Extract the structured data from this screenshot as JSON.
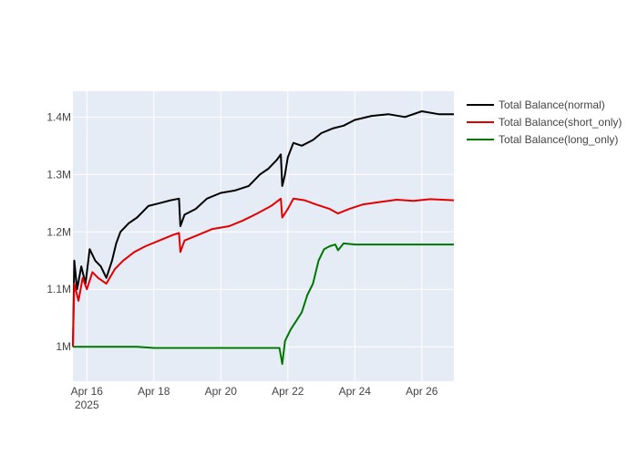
{
  "chart_data": {
    "type": "line",
    "title": "",
    "xlabel": "",
    "ylabel": "",
    "x_start": "2025-04-15 14:00",
    "x_end": "2025-04-26 23:00",
    "xlim": [
      "2025-04-15 14:00",
      "2025-04-26 23:00"
    ],
    "ylim": [
      940000,
      1445000
    ],
    "x_ticks": [
      {
        "date": "2025-04-16",
        "label": "Apr 16",
        "sublabel": "2025"
      },
      {
        "date": "2025-04-18",
        "label": "Apr 18"
      },
      {
        "date": "2025-04-20",
        "label": "Apr 20"
      },
      {
        "date": "2025-04-22",
        "label": "Apr 22"
      },
      {
        "date": "2025-04-24",
        "label": "Apr 24"
      },
      {
        "date": "2025-04-26",
        "label": "Apr 26"
      }
    ],
    "y_ticks": [
      {
        "value": 1000000,
        "label": "1M"
      },
      {
        "value": 1100000,
        "label": "1.1M"
      },
      {
        "value": 1200000,
        "label": "1.2M"
      },
      {
        "value": 1300000,
        "label": "1.3M"
      },
      {
        "value": 1400000,
        "label": "1.4M"
      }
    ],
    "grid": true,
    "legend_position": "right",
    "plot_background": "#e5ecf6",
    "series": [
      {
        "name": "Total Balance(normal)",
        "color": "#000000",
        "points": [
          [
            "2025-04-15 14:00",
            1000000
          ],
          [
            "2025-04-15 15:00",
            1150000
          ],
          [
            "2025-04-15 17:00",
            1100000
          ],
          [
            "2025-04-15 20:00",
            1140000
          ],
          [
            "2025-04-15 23:00",
            1110000
          ],
          [
            "2025-04-16 02:00",
            1170000
          ],
          [
            "2025-04-16 06:00",
            1150000
          ],
          [
            "2025-04-16 10:00",
            1140000
          ],
          [
            "2025-04-16 14:00",
            1120000
          ],
          [
            "2025-04-16 18:00",
            1150000
          ],
          [
            "2025-04-16 21:00",
            1180000
          ],
          [
            "2025-04-17 00:00",
            1200000
          ],
          [
            "2025-04-17 06:00",
            1215000
          ],
          [
            "2025-04-17 12:00",
            1225000
          ],
          [
            "2025-04-17 16:00",
            1235000
          ],
          [
            "2025-04-17 20:00",
            1245000
          ],
          [
            "2025-04-18 04:00",
            1250000
          ],
          [
            "2025-04-18 12:00",
            1255000
          ],
          [
            "2025-04-18 18:00",
            1258000
          ],
          [
            "2025-04-18 19:00",
            1210000
          ],
          [
            "2025-04-18 22:00",
            1230000
          ],
          [
            "2025-04-19 06:00",
            1240000
          ],
          [
            "2025-04-19 14:00",
            1258000
          ],
          [
            "2025-04-20 00:00",
            1268000
          ],
          [
            "2025-04-20 10:00",
            1272000
          ],
          [
            "2025-04-20 20:00",
            1280000
          ],
          [
            "2025-04-21 04:00",
            1300000
          ],
          [
            "2025-04-21 10:00",
            1310000
          ],
          [
            "2025-04-21 16:00",
            1325000
          ],
          [
            "2025-04-21 19:00",
            1335000
          ],
          [
            "2025-04-21 20:00",
            1280000
          ],
          [
            "2025-04-21 22:00",
            1300000
          ],
          [
            "2025-04-22 00:00",
            1330000
          ],
          [
            "2025-04-22 04:00",
            1355000
          ],
          [
            "2025-04-22 10:00",
            1350000
          ],
          [
            "2025-04-22 18:00",
            1360000
          ],
          [
            "2025-04-23 00:00",
            1372000
          ],
          [
            "2025-04-23 08:00",
            1380000
          ],
          [
            "2025-04-23 16:00",
            1385000
          ],
          [
            "2025-04-24 00:00",
            1395000
          ],
          [
            "2025-04-24 12:00",
            1402000
          ],
          [
            "2025-04-25 00:00",
            1405000
          ],
          [
            "2025-04-25 12:00",
            1400000
          ],
          [
            "2025-04-26 00:00",
            1410000
          ],
          [
            "2025-04-26 12:00",
            1405000
          ],
          [
            "2025-04-26 23:00",
            1405000
          ]
        ]
      },
      {
        "name": "Total Balance(short_only)",
        "color": "#e50000",
        "points": [
          [
            "2025-04-15 14:00",
            1000000
          ],
          [
            "2025-04-15 15:00",
            1110000
          ],
          [
            "2025-04-15 18:00",
            1080000
          ],
          [
            "2025-04-15 21:00",
            1120000
          ],
          [
            "2025-04-16 00:00",
            1100000
          ],
          [
            "2025-04-16 04:00",
            1130000
          ],
          [
            "2025-04-16 08:00",
            1120000
          ],
          [
            "2025-04-16 14:00",
            1110000
          ],
          [
            "2025-04-16 20:00",
            1135000
          ],
          [
            "2025-04-17 02:00",
            1150000
          ],
          [
            "2025-04-17 10:00",
            1165000
          ],
          [
            "2025-04-17 18:00",
            1175000
          ],
          [
            "2025-04-18 04:00",
            1185000
          ],
          [
            "2025-04-18 14:00",
            1195000
          ],
          [
            "2025-04-18 18:00",
            1198000
          ],
          [
            "2025-04-18 19:00",
            1165000
          ],
          [
            "2025-04-18 22:00",
            1185000
          ],
          [
            "2025-04-19 08:00",
            1195000
          ],
          [
            "2025-04-19 18:00",
            1205000
          ],
          [
            "2025-04-20 06:00",
            1210000
          ],
          [
            "2025-04-20 16:00",
            1220000
          ],
          [
            "2025-04-21 02:00",
            1232000
          ],
          [
            "2025-04-21 12:00",
            1245000
          ],
          [
            "2025-04-21 19:00",
            1258000
          ],
          [
            "2025-04-21 20:00",
            1225000
          ],
          [
            "2025-04-22 00:00",
            1240000
          ],
          [
            "2025-04-22 04:00",
            1258000
          ],
          [
            "2025-04-22 12:00",
            1255000
          ],
          [
            "2025-04-22 20:00",
            1248000
          ],
          [
            "2025-04-23 06:00",
            1240000
          ],
          [
            "2025-04-23 12:00",
            1232000
          ],
          [
            "2025-04-23 20:00",
            1240000
          ],
          [
            "2025-04-24 06:00",
            1248000
          ],
          [
            "2025-04-24 18:00",
            1252000
          ],
          [
            "2025-04-25 06:00",
            1256000
          ],
          [
            "2025-04-25 18:00",
            1254000
          ],
          [
            "2025-04-26 06:00",
            1257000
          ],
          [
            "2025-04-26 23:00",
            1255000
          ]
        ]
      },
      {
        "name": "Total Balance(long_only)",
        "color": "#007700",
        "points": [
          [
            "2025-04-15 14:00",
            1000000
          ],
          [
            "2025-04-17 12:00",
            1000000
          ],
          [
            "2025-04-18 00:00",
            998000
          ],
          [
            "2025-04-21 18:00",
            998000
          ],
          [
            "2025-04-21 20:00",
            970000
          ],
          [
            "2025-04-21 22:00",
            1010000
          ],
          [
            "2025-04-22 02:00",
            1030000
          ],
          [
            "2025-04-22 06:00",
            1045000
          ],
          [
            "2025-04-22 10:00",
            1060000
          ],
          [
            "2025-04-22 14:00",
            1090000
          ],
          [
            "2025-04-22 18:00",
            1110000
          ],
          [
            "2025-04-22 22:00",
            1150000
          ],
          [
            "2025-04-23 02:00",
            1170000
          ],
          [
            "2025-04-23 06:00",
            1175000
          ],
          [
            "2025-04-23 10:00",
            1178000
          ],
          [
            "2025-04-23 12:00",
            1168000
          ],
          [
            "2025-04-23 16:00",
            1180000
          ],
          [
            "2025-04-24 00:00",
            1178000
          ],
          [
            "2025-04-26 23:00",
            1178000
          ]
        ]
      }
    ]
  }
}
